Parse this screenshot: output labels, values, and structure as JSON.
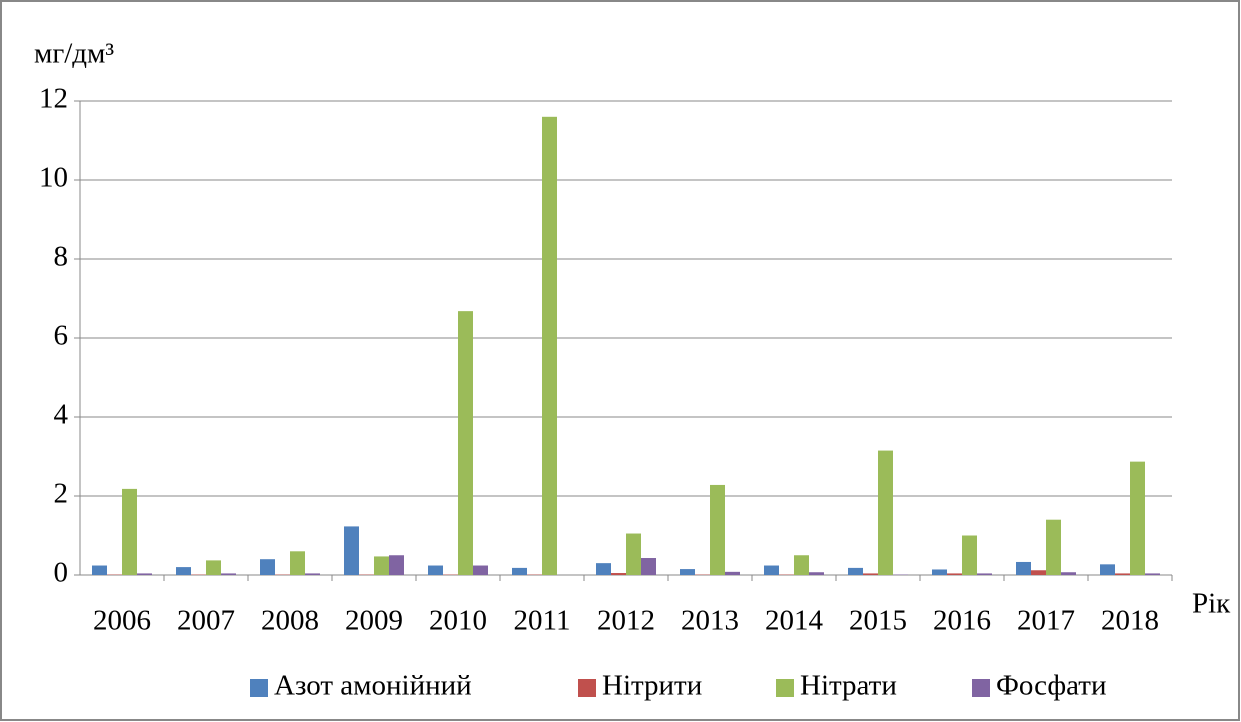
{
  "chart_data": {
    "type": "bar",
    "y_label": "мг/дм³",
    "x_label": "Рік",
    "categories": [
      "2006",
      "2007",
      "2008",
      "2009",
      "2010",
      "2011",
      "2012",
      "2013",
      "2014",
      "2015",
      "2016",
      "2017",
      "2018"
    ],
    "series": [
      {
        "name": "Азот амонійний",
        "color": "#4f81bd",
        "values": [
          0.24,
          0.2,
          0.4,
          1.23,
          0.24,
          0.18,
          0.3,
          0.15,
          0.24,
          0.18,
          0.14,
          0.33,
          0.27
        ]
      },
      {
        "name": "Нітрити",
        "color": "#c0504d",
        "values": [
          0.01,
          0.01,
          0.01,
          0.01,
          0.01,
          0.01,
          0.05,
          0.01,
          0.01,
          0.04,
          0.04,
          0.12,
          0.04
        ]
      },
      {
        "name": "Нітрати",
        "color": "#9bbb59",
        "values": [
          2.18,
          0.37,
          0.6,
          0.47,
          6.68,
          11.6,
          1.05,
          2.28,
          0.5,
          3.15,
          1.0,
          1.4,
          2.87
        ]
      },
      {
        "name": "Фосфати",
        "color": "#8064a2",
        "values": [
          0.04,
          0.04,
          0.04,
          0.5,
          0.24,
          0,
          0.43,
          0.08,
          0.07,
          0.01,
          0.04,
          0.07,
          0.04
        ]
      }
    ],
    "ylim": [
      0,
      12
    ],
    "yticks": [
      0,
      2,
      4,
      6,
      8,
      10,
      12
    ],
    "grid": true,
    "legend": "bottom"
  }
}
